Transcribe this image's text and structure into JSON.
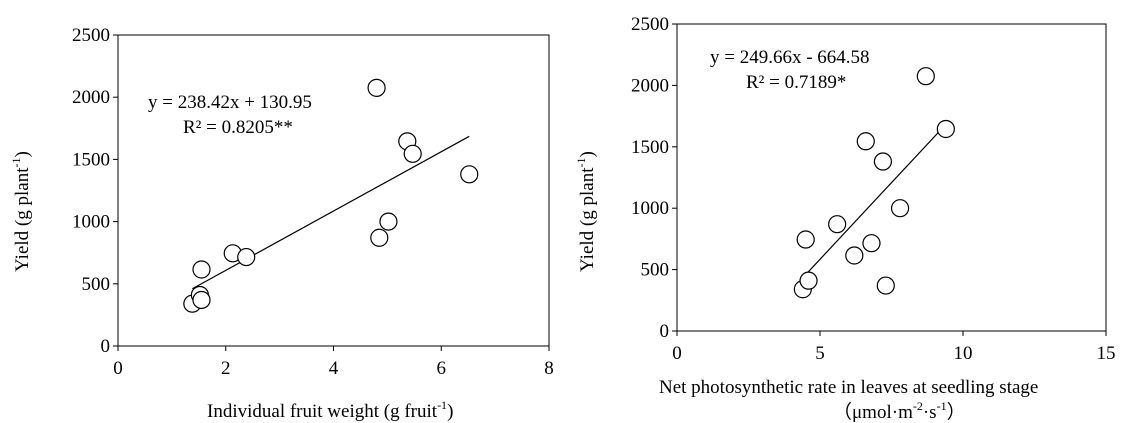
{
  "chart_data": [
    {
      "type": "scatter",
      "xlabel": "Individual fruit weight (g  fruit-1)",
      "xlabel_main": "Individual fruit weight (g  fruit",
      "xlabel_sup": "-1",
      "xlabel_tail": ")",
      "ylabel": "Yield (g plant-1)",
      "ylabel_main": "Yield (g plant",
      "ylabel_sup": "-1",
      "ylabel_tail": ")",
      "xlim": [
        0,
        8
      ],
      "ylim": [
        0,
        2500
      ],
      "xticks": [
        0,
        2,
        4,
        6,
        8
      ],
      "yticks": [
        0,
        500,
        1000,
        1500,
        2000,
        2500
      ],
      "points": [
        {
          "x": 1.38,
          "y": 340
        },
        {
          "x": 1.52,
          "y": 410
        },
        {
          "x": 1.55,
          "y": 370
        },
        {
          "x": 1.55,
          "y": 615
        },
        {
          "x": 2.13,
          "y": 745
        },
        {
          "x": 2.38,
          "y": 715
        },
        {
          "x": 4.8,
          "y": 2075
        },
        {
          "x": 4.85,
          "y": 870
        },
        {
          "x": 5.02,
          "y": 1000
        },
        {
          "x": 5.37,
          "y": 1645
        },
        {
          "x": 5.47,
          "y": 1545
        },
        {
          "x": 6.52,
          "y": 1380
        }
      ],
      "trendline": {
        "slope": 238.42,
        "intercept": 130.95,
        "x_range": [
          1.38,
          6.52
        ]
      },
      "equation": "y = 238.42x + 130.95",
      "r2": "R² = 0.8205**",
      "grid": false
    },
    {
      "type": "scatter",
      "xlabel": "Net photosynthetic rate in leaves at seedling stage （μmol·m-2·s-1）",
      "xlabel_line1": "Net photosynthetic rate in leaves at seedling stage",
      "xlabel_line2_a": "（μmol·m",
      "xlabel_line2_sup1": "-2",
      "xlabel_line2_b": "·s",
      "xlabel_line2_sup2": "-1",
      "xlabel_line2_c": "）",
      "ylabel": "Yield (g plant-1)",
      "ylabel_main": "Yield (g plant",
      "ylabel_sup": "-1",
      "ylabel_tail": ")",
      "xlim": [
        0,
        15
      ],
      "ylim": [
        0,
        2500
      ],
      "xticks": [
        0,
        5,
        10,
        15
      ],
      "yticks": [
        0,
        500,
        1000,
        1500,
        2000,
        2500
      ],
      "points": [
        {
          "x": 4.4,
          "y": 340
        },
        {
          "x": 4.6,
          "y": 410
        },
        {
          "x": 4.5,
          "y": 745
        },
        {
          "x": 5.6,
          "y": 870
        },
        {
          "x": 6.2,
          "y": 615
        },
        {
          "x": 6.6,
          "y": 1545
        },
        {
          "x": 6.8,
          "y": 715
        },
        {
          "x": 7.2,
          "y": 1380
        },
        {
          "x": 7.3,
          "y": 370
        },
        {
          "x": 7.8,
          "y": 1000
        },
        {
          "x": 8.7,
          "y": 2075
        },
        {
          "x": 9.4,
          "y": 1645
        }
      ],
      "trendline": {
        "slope": 249.66,
        "intercept": -664.58,
        "x_range": [
          4.4,
          9.4
        ]
      },
      "equation": "y = 249.66x - 664.58",
      "r2": "R² = 0.7189*",
      "grid": false
    }
  ]
}
